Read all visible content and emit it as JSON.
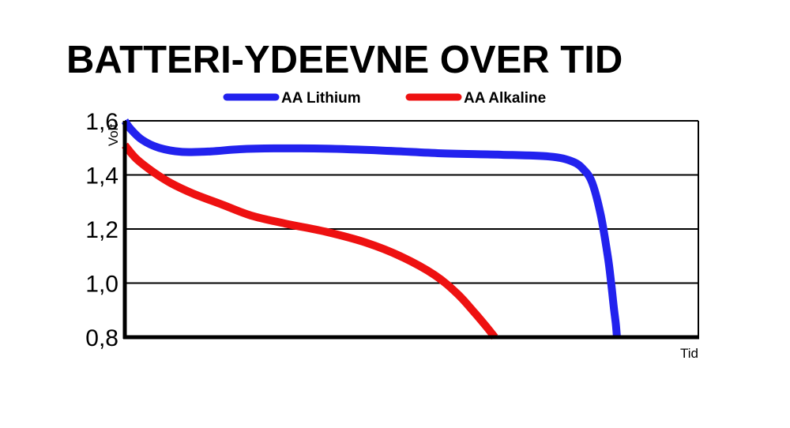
{
  "chart_data": {
    "type": "line",
    "title": "BATTERI-YDEEVNE OVER TID",
    "xlabel": "Tid",
    "ylabel": "Volt",
    "ylim": [
      0.8,
      1.6
    ],
    "xlim": [
      0,
      1
    ],
    "yticks": [
      "1,6",
      "1,4",
      "1,2",
      "1,0",
      "0,8"
    ],
    "ytick_values": [
      1.6,
      1.4,
      1.2,
      1.0,
      0.8
    ],
    "grid": "horizontal",
    "legend_position": "top",
    "series": [
      {
        "name": "AA Lithium",
        "color": "#2222ee",
        "x": [
          0,
          0.01,
          0.03,
          0.06,
          0.1,
          0.15,
          0.2,
          0.26,
          0.35,
          0.45,
          0.55,
          0.65,
          0.74,
          0.78,
          0.8,
          0.815,
          0.83,
          0.842,
          0.848,
          0.852,
          0.856,
          0.858
        ],
        "y": [
          1.6,
          1.57,
          1.53,
          1.5,
          1.485,
          1.487,
          1.495,
          1.498,
          1.497,
          1.49,
          1.48,
          1.475,
          1.468,
          1.45,
          1.42,
          1.37,
          1.25,
          1.1,
          1.0,
          0.92,
          0.85,
          0.8
        ]
      },
      {
        "name": "AA Alkaline",
        "color": "#ee1111",
        "x": [
          0,
          0.02,
          0.05,
          0.08,
          0.12,
          0.17,
          0.22,
          0.28,
          0.35,
          0.42,
          0.48,
          0.54,
          0.58,
          0.61,
          0.63,
          0.645
        ],
        "y": [
          1.51,
          1.46,
          1.41,
          1.37,
          1.33,
          1.29,
          1.25,
          1.22,
          1.19,
          1.15,
          1.1,
          1.03,
          0.96,
          0.89,
          0.84,
          0.8
        ]
      }
    ]
  }
}
